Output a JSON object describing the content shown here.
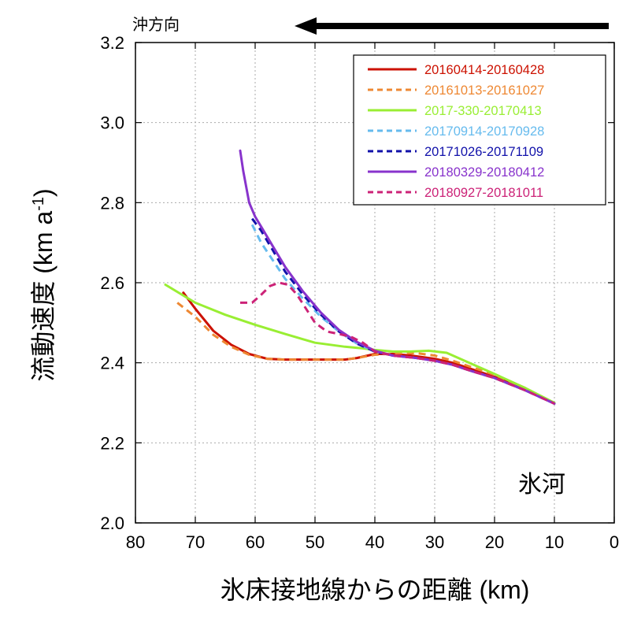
{
  "chart_data": {
    "type": "line",
    "xlabel": "氷床接地線からの距離 (km)",
    "ylabel": "流動速度 (km a",
    "ylabel_sup": "-1",
    "ylabel_tail": ")",
    "xlim": [
      80,
      0
    ],
    "ylim": [
      2.0,
      3.2
    ],
    "x_reversed": true,
    "grid": true,
    "legend_position": "top-right",
    "x_ticks": [
      80,
      70,
      60,
      50,
      40,
      30,
      20,
      10,
      0
    ],
    "y_ticks": [
      2.0,
      2.2,
      2.4,
      2.6,
      2.8,
      3.0,
      3.2
    ],
    "y_tick_labels": [
      "2.0",
      "2.2",
      "2.4",
      "2.6",
      "2.8",
      "3.0",
      "3.2"
    ],
    "annotation_direction": "沖方向",
    "annotation_region": "氷河",
    "series": [
      {
        "name": "20160414-20160428",
        "color": "#cc1100",
        "dash": "solid",
        "x": [
          72,
          70,
          67,
          64,
          61,
          58,
          55,
          50,
          45,
          43,
          40,
          37,
          34,
          30,
          27,
          24,
          20,
          15,
          10
        ],
        "y": [
          2.575,
          2.535,
          2.48,
          2.445,
          2.422,
          2.41,
          2.408,
          2.408,
          2.408,
          2.412,
          2.422,
          2.422,
          2.418,
          2.41,
          2.4,
          2.385,
          2.365,
          2.335,
          2.298
        ]
      },
      {
        "name": "20161013-20161027",
        "color": "#ee8833",
        "dash": "dashed",
        "x": [
          73,
          70,
          67,
          64,
          61,
          58,
          55,
          50,
          45,
          43,
          40,
          36,
          33,
          30,
          27,
          24,
          20,
          15,
          10
        ],
        "y": [
          2.55,
          2.515,
          2.47,
          2.44,
          2.42,
          2.41,
          2.408,
          2.408,
          2.408,
          2.412,
          2.42,
          2.424,
          2.424,
          2.418,
          2.405,
          2.39,
          2.37,
          2.338,
          2.298
        ]
      },
      {
        "name": "2017-330-20170413",
        "color": "#99ee33",
        "dash": "solid",
        "x": [
          75,
          70,
          65,
          60,
          55,
          50,
          45,
          42,
          40,
          37,
          34,
          31,
          28,
          25,
          20,
          15,
          10
        ],
        "y": [
          2.595,
          2.55,
          2.52,
          2.495,
          2.472,
          2.45,
          2.44,
          2.436,
          2.432,
          2.428,
          2.428,
          2.43,
          2.425,
          2.405,
          2.372,
          2.338,
          2.3
        ]
      },
      {
        "name": "20170914-20170928",
        "color": "#66bbee",
        "dash": "dashed",
        "x": [
          60.5,
          59,
          57,
          55,
          52,
          49,
          46,
          43,
          40,
          37,
          33,
          30,
          27,
          24,
          20,
          15,
          10
        ],
        "y": [
          2.745,
          2.7,
          2.655,
          2.61,
          2.56,
          2.515,
          2.478,
          2.448,
          2.428,
          2.418,
          2.412,
          2.405,
          2.395,
          2.38,
          2.362,
          2.332,
          2.298
        ]
      },
      {
        "name": "20171026-20171109",
        "color": "#1111aa",
        "dash": "dashed",
        "x": [
          60.5,
          59,
          57,
          55,
          52,
          49,
          46,
          43,
          40,
          37,
          33,
          30,
          27,
          24,
          20,
          15,
          10
        ],
        "y": [
          2.76,
          2.73,
          2.68,
          2.628,
          2.57,
          2.52,
          2.478,
          2.448,
          2.428,
          2.418,
          2.412,
          2.405,
          2.395,
          2.38,
          2.362,
          2.332,
          2.298
        ]
      },
      {
        "name": "20180329-20180412",
        "color": "#8833cc",
        "dash": "solid",
        "x": [
          62.5,
          62,
          61.5,
          61,
          60,
          59,
          57,
          55,
          52,
          49,
          46,
          43,
          40,
          37,
          33,
          30,
          27,
          24,
          20,
          15,
          10
        ],
        "y": [
          2.93,
          2.88,
          2.84,
          2.8,
          2.765,
          2.74,
          2.69,
          2.64,
          2.578,
          2.525,
          2.482,
          2.452,
          2.43,
          2.418,
          2.412,
          2.405,
          2.395,
          2.38,
          2.362,
          2.332,
          2.298
        ]
      },
      {
        "name": "20180927-20181011",
        "color": "#cc2277",
        "dash": "dashed",
        "x": [
          62.5,
          60.5,
          59,
          57.5,
          56,
          54.5,
          53,
          51.5,
          50,
          48,
          46,
          44,
          42,
          40,
          37,
          33,
          30,
          27,
          24,
          20,
          15,
          10
        ],
        "y": [
          2.55,
          2.55,
          2.57,
          2.592,
          2.6,
          2.595,
          2.57,
          2.535,
          2.5,
          2.478,
          2.472,
          2.465,
          2.45,
          2.428,
          2.418,
          2.412,
          2.405,
          2.395,
          2.38,
          2.362,
          2.332,
          2.298
        ]
      }
    ]
  }
}
